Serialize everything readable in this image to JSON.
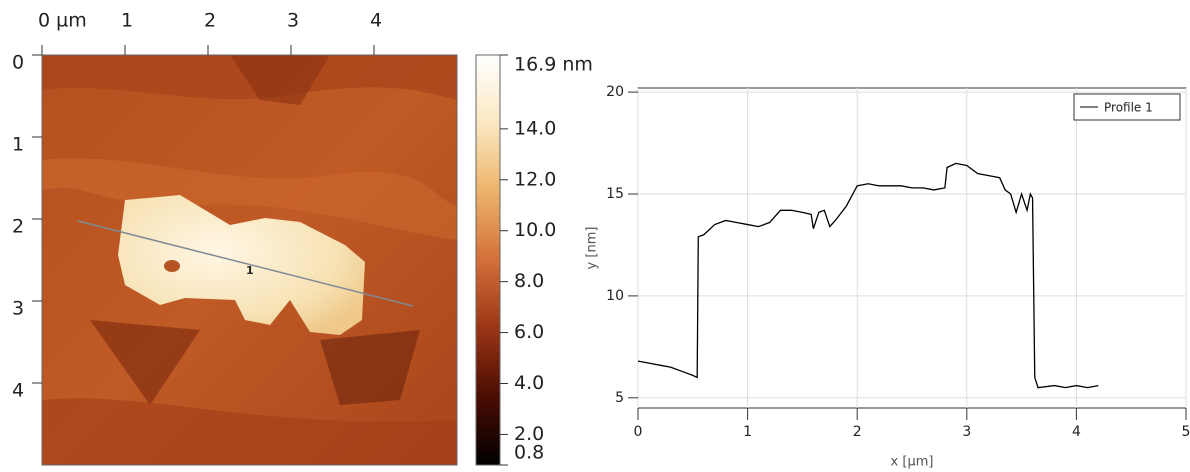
{
  "chart_data": [
    {
      "type": "image",
      "xticks": [
        {
          "value": 0,
          "label": "0 µm"
        },
        1,
        2,
        3,
        4
      ],
      "yticks": [
        0,
        1,
        2,
        3,
        4
      ],
      "xlim": [
        0,
        5
      ],
      "ylim": [
        0,
        5
      ],
      "profile_label": "1",
      "colorbar": {
        "clim": [
          0.8,
          16.9
        ],
        "colors": [
          "#000000",
          "#4a0c02",
          "#9a3515",
          "#d4703a",
          "#ecb36a",
          "#fbe8c2",
          "#ffffff"
        ],
        "ticks": [
          {
            "value": 16.9,
            "label": "16.9 nm"
          },
          {
            "value": 14,
            "label": "14.0"
          },
          {
            "value": 12,
            "label": "12.0"
          },
          {
            "value": 10,
            "label": "10.0"
          },
          {
            "value": 8,
            "label": "8.0"
          },
          {
            "value": 6,
            "label": "6.0"
          },
          {
            "value": 4,
            "label": "4.0"
          },
          {
            "value": 2,
            "label": "2.0"
          },
          0.8
        ]
      }
    },
    {
      "type": "line",
      "x_label": "x [µm]",
      "y_label": "y [nm]",
      "xlim": [
        0,
        5
      ],
      "ylim": [
        4.5,
        20.2
      ],
      "xticks": [
        0,
        1,
        2,
        3,
        4,
        5
      ],
      "yticks": [
        5,
        10,
        15,
        20
      ],
      "grid": true,
      "legend": "upper right",
      "series": [
        {
          "name": "Profile 1",
          "color": "#000000",
          "x": [
            0,
            0.1,
            0.2,
            0.3,
            0.4,
            0.5,
            0.54,
            0.55,
            0.6,
            0.7,
            0.8,
            0.9,
            1.0,
            1.1,
            1.2,
            1.3,
            1.4,
            1.5,
            1.58,
            1.6,
            1.65,
            1.7,
            1.75,
            1.8,
            1.9,
            2.0,
            2.1,
            2.2,
            2.3,
            2.4,
            2.5,
            2.6,
            2.7,
            2.8,
            2.82,
            2.9,
            3.0,
            3.1,
            3.2,
            3.3,
            3.35,
            3.4,
            3.45,
            3.5,
            3.55,
            3.58,
            3.6,
            3.62,
            3.65,
            3.8,
            3.9,
            4.0,
            4.1,
            4.2
          ],
          "values": [
            6.8,
            6.7,
            6.6,
            6.5,
            6.3,
            6.1,
            6.0,
            12.9,
            13.0,
            13.5,
            13.7,
            13.6,
            13.5,
            13.4,
            13.6,
            14.2,
            14.2,
            14.1,
            14.0,
            13.3,
            14.1,
            14.2,
            13.4,
            13.7,
            14.4,
            15.4,
            15.5,
            15.4,
            15.4,
            15.4,
            15.3,
            15.3,
            15.2,
            15.3,
            16.3,
            16.5,
            16.4,
            16.0,
            15.9,
            15.8,
            15.2,
            15.0,
            14.1,
            15.0,
            14.2,
            15.0,
            14.8,
            6.0,
            5.5,
            5.6,
            5.5,
            5.6,
            5.5,
            5.6
          ]
        }
      ]
    }
  ]
}
